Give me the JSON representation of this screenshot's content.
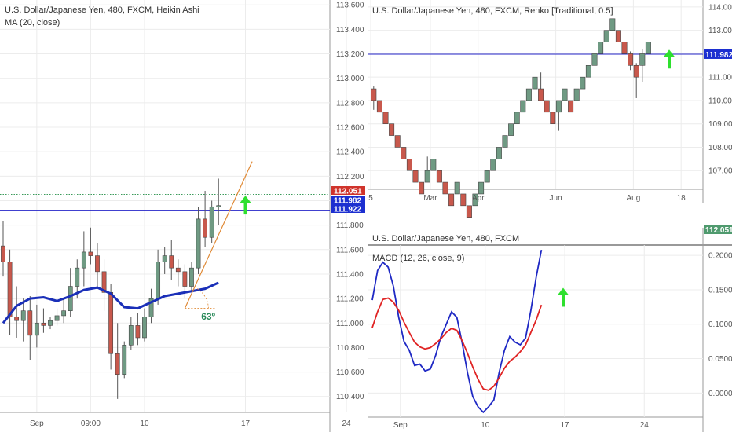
{
  "colors": {
    "up_fill": "#6f9a83",
    "down_fill": "#c8584c",
    "wick": "#555555",
    "ma_line": "#1a2fb8",
    "blue_level": "#2424c8",
    "macd_line": "#1f29c4",
    "signal_line": "#e02424",
    "arrow": "#2ee02e",
    "trend_line": "#e08a36",
    "angle_text": "#2a8a5a",
    "tag_green": "#4f9a6e",
    "tag_red": "#d0342c",
    "tag_blue": "#1c2fd0"
  },
  "icons": {
    "arrow": "up-arrow-icon"
  },
  "chart_data": [
    {
      "id": "heikin",
      "type": "candlestick",
      "title": "U.S. Dollar/Japanese Yen, 480, FXCM, Heikin Ashi",
      "indicator_label": "MA (20, close)",
      "y_ticks": [
        "113.600",
        "113.400",
        "113.200",
        "113.000",
        "112.800",
        "112.600",
        "112.400",
        "112.200",
        "112.000",
        "111.800",
        "111.600",
        "111.400",
        "111.200",
        "111.000",
        "110.800",
        "110.600",
        "110.400"
      ],
      "y_range": [
        110.27,
        113.64
      ],
      "x_ticks": [
        {
          "label": "Sep",
          "i": 5
        },
        {
          "label": "09:00",
          "i": 13
        },
        {
          "label": "10",
          "i": 21
        },
        {
          "label": "17",
          "i": 36
        },
        {
          "label": "24",
          "i": 51
        }
      ],
      "x_slots": 53,
      "candles": [
        {
          "o": 111.63,
          "h": 111.83,
          "l": 111.38,
          "c": 111.5
        },
        {
          "o": 111.5,
          "h": 111.6,
          "l": 110.9,
          "c": 111.05
        },
        {
          "o": 111.05,
          "h": 111.3,
          "l": 110.88,
          "c": 111.02
        },
        {
          "o": 111.02,
          "h": 111.2,
          "l": 110.85,
          "c": 111.1
        },
        {
          "o": 111.1,
          "h": 111.22,
          "l": 110.7,
          "c": 110.9
        },
        {
          "o": 110.9,
          "h": 111.15,
          "l": 110.8,
          "c": 111.0
        },
        {
          "o": 111.0,
          "h": 111.12,
          "l": 110.92,
          "c": 110.98
        },
        {
          "o": 110.98,
          "h": 111.05,
          "l": 110.95,
          "c": 111.02
        },
        {
          "o": 111.02,
          "h": 111.12,
          "l": 110.98,
          "c": 111.06
        },
        {
          "o": 111.06,
          "h": 111.2,
          "l": 111.0,
          "c": 111.1
        },
        {
          "o": 111.1,
          "h": 111.45,
          "l": 111.05,
          "c": 111.3
        },
        {
          "o": 111.3,
          "h": 111.52,
          "l": 111.2,
          "c": 111.45
        },
        {
          "o": 111.45,
          "h": 111.75,
          "l": 111.3,
          "c": 111.58
        },
        {
          "o": 111.58,
          "h": 111.78,
          "l": 111.48,
          "c": 111.55
        },
        {
          "o": 111.55,
          "h": 111.65,
          "l": 111.3,
          "c": 111.42
        },
        {
          "o": 111.42,
          "h": 111.52,
          "l": 111.1,
          "c": 111.25
        },
        {
          "o": 111.25,
          "h": 111.32,
          "l": 110.62,
          "c": 110.75
        },
        {
          "o": 110.75,
          "h": 111.0,
          "l": 110.38,
          "c": 110.58
        },
        {
          "o": 110.58,
          "h": 110.85,
          "l": 110.55,
          "c": 110.82
        },
        {
          "o": 110.82,
          "h": 111.05,
          "l": 110.78,
          "c": 110.98
        },
        {
          "o": 110.98,
          "h": 111.08,
          "l": 110.82,
          "c": 110.88
        },
        {
          "o": 110.88,
          "h": 111.12,
          "l": 110.85,
          "c": 111.05
        },
        {
          "o": 111.05,
          "h": 111.28,
          "l": 111.0,
          "c": 111.2
        },
        {
          "o": 111.2,
          "h": 111.6,
          "l": 111.15,
          "c": 111.5
        },
        {
          "o": 111.5,
          "h": 111.62,
          "l": 111.4,
          "c": 111.55
        },
        {
          "o": 111.55,
          "h": 111.68,
          "l": 111.35,
          "c": 111.45
        },
        {
          "o": 111.45,
          "h": 111.52,
          "l": 111.3,
          "c": 111.42
        },
        {
          "o": 111.42,
          "h": 111.48,
          "l": 111.2,
          "c": 111.3
        },
        {
          "o": 111.3,
          "h": 111.5,
          "l": 111.25,
          "c": 111.45
        },
        {
          "o": 111.45,
          "h": 111.95,
          "l": 111.4,
          "c": 111.85
        },
        {
          "o": 111.85,
          "h": 112.08,
          "l": 111.62,
          "c": 111.7
        },
        {
          "o": 111.7,
          "h": 112.0,
          "l": 111.65,
          "c": 111.95
        },
        {
          "o": 111.95,
          "h": 112.18,
          "l": 111.8,
          "c": 111.96
        }
      ],
      "ma": [
        {
          "i": 0,
          "v": 111.0
        },
        {
          "i": 2,
          "v": 111.14
        },
        {
          "i": 4,
          "v": 111.2
        },
        {
          "i": 6,
          "v": 111.21
        },
        {
          "i": 8,
          "v": 111.18
        },
        {
          "i": 10,
          "v": 111.22
        },
        {
          "i": 12,
          "v": 111.27
        },
        {
          "i": 14,
          "v": 111.29
        },
        {
          "i": 16,
          "v": 111.24
        },
        {
          "i": 18,
          "v": 111.13
        },
        {
          "i": 20,
          "v": 111.12
        },
        {
          "i": 22,
          "v": 111.17
        },
        {
          "i": 24,
          "v": 111.22
        },
        {
          "i": 26,
          "v": 111.24
        },
        {
          "i": 28,
          "v": 111.26
        },
        {
          "i": 30,
          "v": 111.28
        },
        {
          "i": 32,
          "v": 111.33
        }
      ],
      "trend_line": {
        "from": {
          "i": 27,
          "v": 111.12
        },
        "to": {
          "i": 37,
          "v": 112.32
        }
      },
      "angle_label": "63º",
      "angle_anchor": {
        "i": 28.5,
        "v": 111.06
      },
      "blue_level": 111.922,
      "dotted_level": 112.051,
      "price_tags": [
        {
          "label": "112.051",
          "v": 112.051,
          "color": "tag_red"
        },
        {
          "label": "111.982",
          "v": 111.982,
          "color": "tag_blue"
        },
        {
          "label": "111.922",
          "v": 111.922,
          "color": "tag_blue"
        }
      ],
      "arrow_at": {
        "i": 36,
        "v": 111.9
      }
    },
    {
      "id": "renko",
      "type": "renko",
      "title": "U.S. Dollar/Japanese Yen, 480, FXCM, Renko [Traditional, 0.5]",
      "box_size": 0.5,
      "y_ticks": [
        "114.000",
        "113.000",
        "112.000",
        "111.000",
        "110.000",
        "109.000",
        "108.000",
        "107.000"
      ],
      "y_range": [
        106.2,
        114.3
      ],
      "x_ticks": [
        {
          "label": "5",
          "i": 0
        },
        {
          "label": "Mar",
          "i": 10
        },
        {
          "label": "Apr",
          "i": 18
        },
        {
          "label": "Jun",
          "i": 31
        },
        {
          "label": "Aug",
          "i": 44
        },
        {
          "label": "18",
          "i": 52
        }
      ],
      "x_slots": 57,
      "bricks": [
        {
          "b": 110.0,
          "d": "down"
        },
        {
          "b": 109.5,
          "d": "down"
        },
        {
          "b": 109.0,
          "d": "down"
        },
        {
          "b": 108.5,
          "d": "down"
        },
        {
          "b": 108.0,
          "d": "down"
        },
        {
          "b": 107.5,
          "d": "down"
        },
        {
          "b": 107.0,
          "d": "down"
        },
        {
          "b": 106.5,
          "d": "down"
        },
        {
          "b": 106.0,
          "d": "down"
        },
        {
          "b": 106.5,
          "d": "up"
        },
        {
          "b": 107.0,
          "d": "up"
        },
        {
          "b": 106.5,
          "d": "down"
        },
        {
          "b": 106.0,
          "d": "down"
        },
        {
          "b": 105.5,
          "d": "down"
        },
        {
          "b": 106.0,
          "d": "up"
        },
        {
          "b": 105.5,
          "d": "down"
        },
        {
          "b": 105.0,
          "d": "down"
        },
        {
          "b": 105.5,
          "d": "up"
        },
        {
          "b": 106.0,
          "d": "up"
        },
        {
          "b": 106.5,
          "d": "up"
        },
        {
          "b": 107.0,
          "d": "up"
        },
        {
          "b": 107.5,
          "d": "up"
        },
        {
          "b": 108.0,
          "d": "up"
        },
        {
          "b": 108.5,
          "d": "up"
        },
        {
          "b": 109.0,
          "d": "up"
        },
        {
          "b": 109.5,
          "d": "up"
        },
        {
          "b": 110.0,
          "d": "up"
        },
        {
          "b": 110.5,
          "d": "up"
        },
        {
          "b": 110.0,
          "d": "down"
        },
        {
          "b": 109.5,
          "d": "down"
        },
        {
          "b": 109.0,
          "d": "down"
        },
        {
          "b": 109.5,
          "d": "up"
        },
        {
          "b": 110.0,
          "d": "up"
        },
        {
          "b": 109.5,
          "d": "down"
        },
        {
          "b": 110.0,
          "d": "up"
        },
        {
          "b": 110.5,
          "d": "up"
        },
        {
          "b": 111.0,
          "d": "up"
        },
        {
          "b": 111.5,
          "d": "up"
        },
        {
          "b": 112.0,
          "d": "up"
        },
        {
          "b": 112.5,
          "d": "up"
        },
        {
          "b": 113.0,
          "d": "up"
        },
        {
          "b": 112.5,
          "d": "down"
        },
        {
          "b": 112.0,
          "d": "down"
        },
        {
          "b": 111.5,
          "d": "down"
        },
        {
          "b": 111.0,
          "d": "down"
        },
        {
          "b": 111.5,
          "d": "up"
        },
        {
          "b": 112.0,
          "d": "up"
        }
      ],
      "wicks": [
        {
          "i": 0,
          "lo": 109.6,
          "hi": 110.6
        },
        {
          "i": 9,
          "lo": 106.6,
          "hi": 107.6
        },
        {
          "i": 31,
          "lo": 108.7,
          "hi": 109.7
        },
        {
          "i": 28,
          "lo": 110.0,
          "hi": 111.2
        },
        {
          "i": 44,
          "lo": 110.1,
          "hi": 111.6
        },
        {
          "i": 45,
          "lo": 110.8,
          "hi": 112.2
        },
        {
          "i": 43,
          "lo": 111.3,
          "hi": 112.1
        }
      ],
      "blue_level": 111.982,
      "price_tags": [
        {
          "label": "111.982",
          "v": 111.982,
          "color": "tag_blue"
        }
      ],
      "arrow_at": {
        "i": 50,
        "v": 111.3
      }
    },
    {
      "id": "macd",
      "type": "line",
      "title": "U.S. Dollar/Japanese Yen, 480, FXCM",
      "indicator_label": "MACD (12, 26, close, 9)",
      "y_ticks": [
        "0.2000",
        "0.1500",
        "0.1000",
        "0.0500",
        "0.0000"
      ],
      "y_range": [
        -0.035,
        0.215
      ],
      "x_ticks": [
        {
          "label": "Sep",
          "i": 5
        },
        {
          "label": "10",
          "i": 21
        },
        {
          "label": "17",
          "i": 36
        },
        {
          "label": "24",
          "i": 51
        }
      ],
      "x_slots": 53,
      "price_tag": {
        "label": "112.051",
        "color": "tag_green"
      },
      "series": [
        {
          "name": "MACD",
          "color": "macd_line",
          "points": [
            {
              "i": 0,
              "v": 0.135
            },
            {
              "i": 1,
              "v": 0.178
            },
            {
              "i": 2,
              "v": 0.19
            },
            {
              "i": 3,
              "v": 0.183
            },
            {
              "i": 4,
              "v": 0.155
            },
            {
              "i": 5,
              "v": 0.11
            },
            {
              "i": 6,
              "v": 0.075
            },
            {
              "i": 7,
              "v": 0.062
            },
            {
              "i": 8,
              "v": 0.04
            },
            {
              "i": 9,
              "v": 0.042
            },
            {
              "i": 10,
              "v": 0.032
            },
            {
              "i": 11,
              "v": 0.035
            },
            {
              "i": 12,
              "v": 0.055
            },
            {
              "i": 13,
              "v": 0.082
            },
            {
              "i": 14,
              "v": 0.1
            },
            {
              "i": 15,
              "v": 0.118
            },
            {
              "i": 16,
              "v": 0.11
            },
            {
              "i": 17,
              "v": 0.073
            },
            {
              "i": 18,
              "v": 0.03
            },
            {
              "i": 19,
              "v": -0.005
            },
            {
              "i": 20,
              "v": -0.02
            },
            {
              "i": 21,
              "v": -0.028
            },
            {
              "i": 22,
              "v": -0.02
            },
            {
              "i": 23,
              "v": -0.01
            },
            {
              "i": 24,
              "v": 0.03
            },
            {
              "i": 25,
              "v": 0.062
            },
            {
              "i": 26,
              "v": 0.082
            },
            {
              "i": 27,
              "v": 0.074
            },
            {
              "i": 28,
              "v": 0.07
            },
            {
              "i": 29,
              "v": 0.08
            },
            {
              "i": 30,
              "v": 0.12
            },
            {
              "i": 31,
              "v": 0.168
            },
            {
              "i": 32,
              "v": 0.208
            }
          ]
        },
        {
          "name": "Signal",
          "color": "signal_line",
          "points": [
            {
              "i": 0,
              "v": 0.095
            },
            {
              "i": 1,
              "v": 0.118
            },
            {
              "i": 2,
              "v": 0.136
            },
            {
              "i": 3,
              "v": 0.138
            },
            {
              "i": 4,
              "v": 0.132
            },
            {
              "i": 5,
              "v": 0.12
            },
            {
              "i": 6,
              "v": 0.103
            },
            {
              "i": 7,
              "v": 0.088
            },
            {
              "i": 8,
              "v": 0.074
            },
            {
              "i": 9,
              "v": 0.067
            },
            {
              "i": 10,
              "v": 0.064
            },
            {
              "i": 11,
              "v": 0.066
            },
            {
              "i": 12,
              "v": 0.072
            },
            {
              "i": 13,
              "v": 0.079
            },
            {
              "i": 14,
              "v": 0.088
            },
            {
              "i": 15,
              "v": 0.094
            },
            {
              "i": 16,
              "v": 0.091
            },
            {
              "i": 17,
              "v": 0.076
            },
            {
              "i": 18,
              "v": 0.058
            },
            {
              "i": 19,
              "v": 0.038
            },
            {
              "i": 20,
              "v": 0.02
            },
            {
              "i": 21,
              "v": 0.006
            },
            {
              "i": 22,
              "v": 0.004
            },
            {
              "i": 23,
              "v": 0.01
            },
            {
              "i": 24,
              "v": 0.022
            },
            {
              "i": 25,
              "v": 0.036
            },
            {
              "i": 26,
              "v": 0.046
            },
            {
              "i": 27,
              "v": 0.052
            },
            {
              "i": 28,
              "v": 0.06
            },
            {
              "i": 29,
              "v": 0.07
            },
            {
              "i": 30,
              "v": 0.088
            },
            {
              "i": 31,
              "v": 0.106
            },
            {
              "i": 32,
              "v": 0.128
            }
          ]
        }
      ],
      "arrow_at": {
        "i": 36,
        "v": 0.13
      }
    }
  ]
}
